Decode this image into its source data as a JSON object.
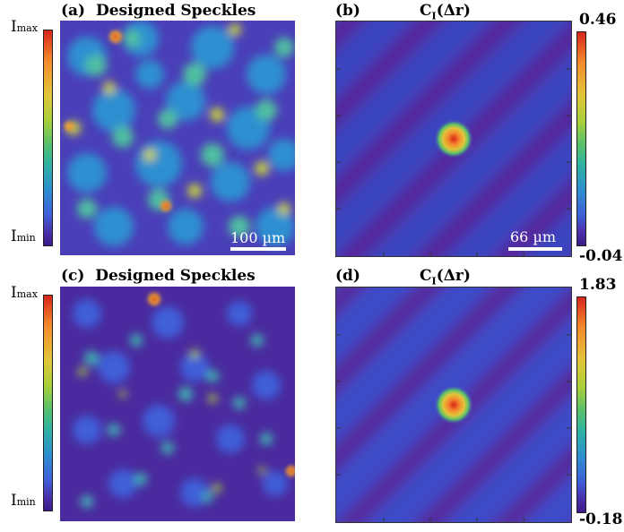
{
  "panels": {
    "a": {
      "label": "(a)",
      "title": "Designed Speckles",
      "scale": "100 µm"
    },
    "b": {
      "label": "(b)",
      "title_main": "C",
      "title_sub": "I",
      "title_rest": "(Δr)",
      "scale": "66 µm",
      "cbar_max": "0.46",
      "cbar_min": "-0.04"
    },
    "c": {
      "label": "(c)",
      "title": "Designed Speckles"
    },
    "d": {
      "label": "(d)",
      "title_main": "C",
      "title_sub": "I",
      "title_rest": "(Δr)",
      "cbar_max": "1.83",
      "cbar_min": "-0.18"
    }
  },
  "intensity_labels": {
    "max_main": "I",
    "max_sub": "max",
    "min_main": "I",
    "min_sub": "min"
  },
  "colors": {
    "low": "#3d1b88",
    "mid": "#5cc268",
    "high": "#d7261b"
  }
}
